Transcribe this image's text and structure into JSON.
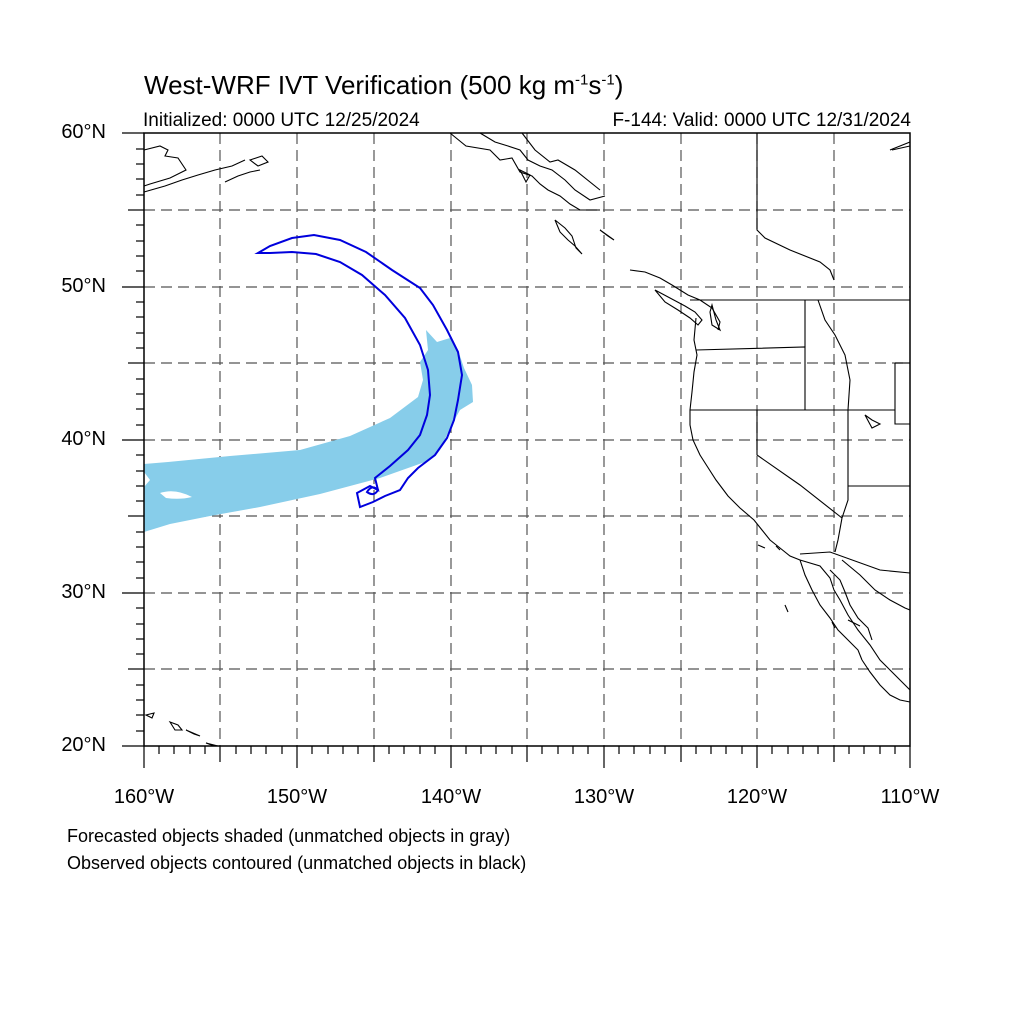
{
  "title": {
    "prefix": "West-WRF IVT Verification (500 kg m",
    "sup1": "-1",
    "mid": "s",
    "sup2": "-1",
    "suffix": ")"
  },
  "initialized": "Initialized: 0000 UTC 12/25/2024",
  "valid": "F-144: Valid: 0000 UTC 12/31/2024",
  "lat_labels": [
    "60°N",
    "50°N",
    "40°N",
    "30°N",
    "20°N"
  ],
  "lon_labels": [
    "160°W",
    "150°W",
    "140°W",
    "130°W",
    "120°W",
    "110°W"
  ],
  "notes": [
    "Forecasted objects shaded (unmatched objects in gray)",
    "Observed objects contoured (unmatched objects in black)"
  ],
  "map": {
    "lon_range": [
      -160,
      -110
    ],
    "lat_range": [
      20,
      60
    ],
    "grid_interval_deg": 5,
    "grid_style": "dashed",
    "forecast_color": "#87cdea",
    "observed_color": "#0000dd",
    "coast_color": "#000000"
  }
}
